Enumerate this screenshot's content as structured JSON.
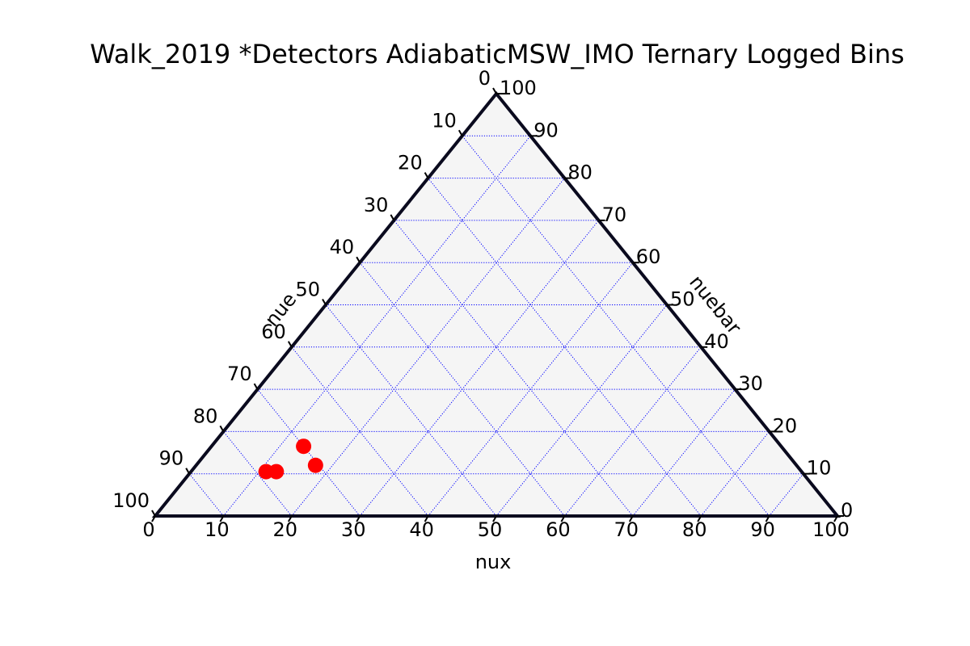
{
  "chart_data": {
    "type": "scatter",
    "subtype": "ternary",
    "title": "Walk_2019 *Detectors AdiabaticMSW_IMO Ternary Logged Bins",
    "axes": {
      "bottom": {
        "label": "nux",
        "ticks": [
          "0",
          "10",
          "20",
          "30",
          "40",
          "50",
          "60",
          "70",
          "80",
          "90",
          "100"
        ]
      },
      "left": {
        "label": "nue",
        "ticks": [
          "0",
          "10",
          "20",
          "30",
          "40",
          "50",
          "60",
          "70",
          "80",
          "90",
          "100"
        ]
      },
      "right": {
        "label": "nuebar",
        "ticks": [
          "0",
          "10",
          "20",
          "30",
          "40",
          "50",
          "60",
          "70",
          "80",
          "90",
          "100"
        ]
      }
    },
    "range": [
      0,
      100
    ],
    "grid": true,
    "grid_color": "#0000ff",
    "background_color": "#f5f5f5",
    "marker_color": "#ff0000",
    "frame_color": "#0a0a1e",
    "points": [
      {
        "nux": 13.5,
        "nuebar": 16.5,
        "nue": 70.0
      },
      {
        "nux": 17.5,
        "nuebar": 12.0,
        "nue": 70.5
      },
      {
        "nux": 11.0,
        "nuebar": 10.5,
        "nue": 78.5
      },
      {
        "nux": 12.5,
        "nuebar": 10.5,
        "nue": 77.0
      }
    ]
  }
}
